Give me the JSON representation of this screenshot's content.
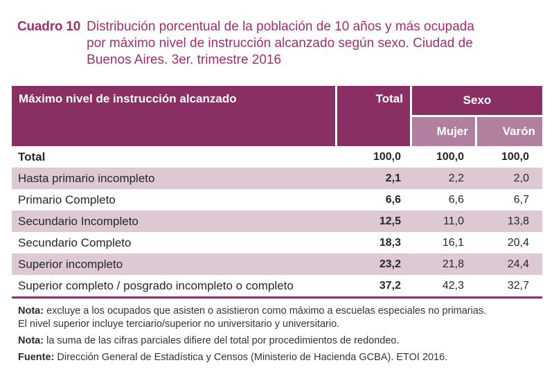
{
  "title": {
    "label": "Cuadro 10",
    "line1": "Distribución porcentual de la población de 10 años y más ocupada",
    "line2": "por máximo nivel de instrucción alcanzado según sexo. Ciudad de",
    "line3": "Buenos Aires. 3er. trimestre 2016"
  },
  "colors": {
    "header_dark": "#8a2f63",
    "header_medium": "#b1809e",
    "row_stripe": "#dcc9d4",
    "title_text": "#9d3168"
  },
  "table": {
    "col_header": "Máximo nivel de instrucción alcanzado",
    "total_header": "Total",
    "sexo_header": "Sexo",
    "mujer_header": "Mujer",
    "varon_header": "Varón",
    "rows": [
      {
        "label": "Total",
        "total": "100,0",
        "mujer": "100,0",
        "varon": "100,0"
      },
      {
        "label": "Hasta primario incompleto",
        "total": "2,1",
        "mujer": "2,2",
        "varon": "2,0"
      },
      {
        "label": "Primario Completo",
        "total": "6,6",
        "mujer": "6,6",
        "varon": "6,7"
      },
      {
        "label": "Secundario Incompleto",
        "total": "12,5",
        "mujer": "11,0",
        "varon": "13,8"
      },
      {
        "label": "Secundario Completo",
        "total": "18,3",
        "mujer": "16,1",
        "varon": "20,4"
      },
      {
        "label": "Superior incompleto",
        "total": "23,2",
        "mujer": "21,8",
        "varon": "24,4"
      },
      {
        "label": "Superior completo / posgrado incompleto o completo",
        "total": "37,2",
        "mujer": "42,3",
        "varon": "32,7"
      }
    ]
  },
  "notes": {
    "note1_prefix": "Nota:",
    "note1_line1": " excluye a los ocupados que asisten o asistieron como máximo a escuelas especiales no primarias.",
    "note1_line2": "El nivel superior incluye terciario/superior no universitario y universitario.",
    "note2_prefix": "Nota:",
    "note2_text": " la suma de las cifras parciales difiere del total por procedimientos de redondeo.",
    "fuente_prefix": "Fuente:",
    "fuente_text": " Dirección General de Estadística y Censos (Ministerio de Hacienda GCBA). ETOI 2016."
  }
}
